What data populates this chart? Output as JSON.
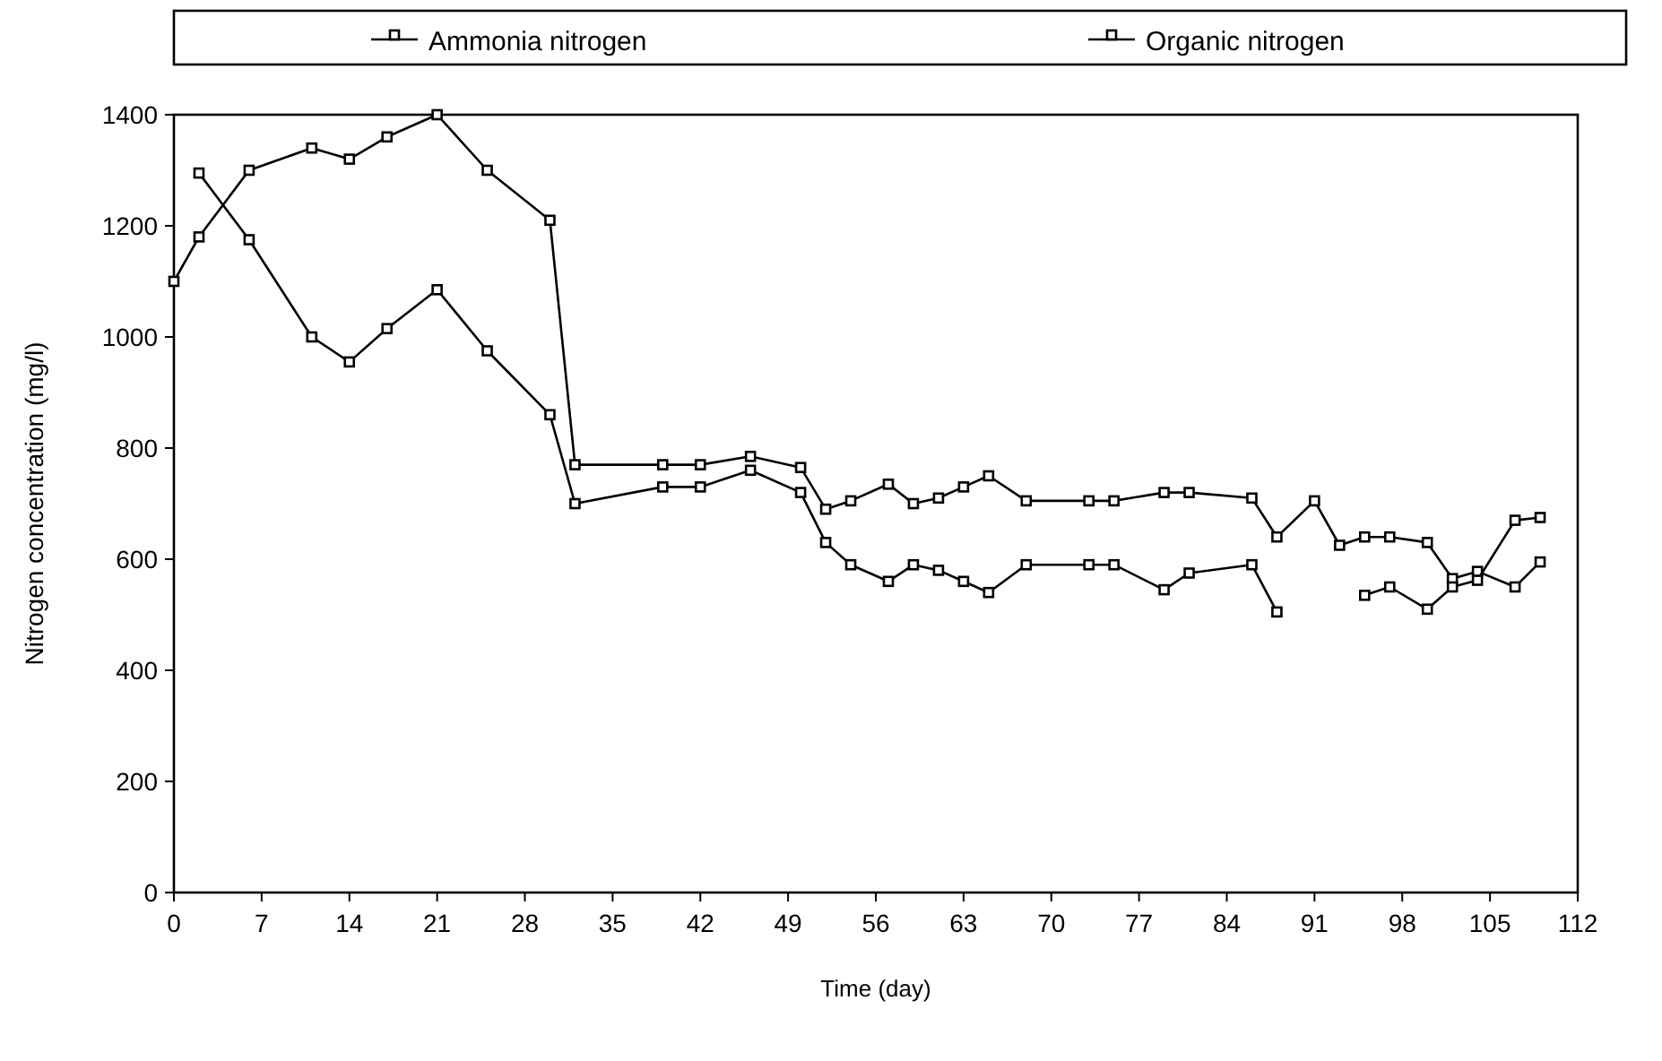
{
  "chart_data": {
    "type": "line",
    "xlabel": "Time (day)",
    "ylabel": "Nitrogen concentration (mg/l)",
    "xlim": [
      0,
      112
    ],
    "xticks": [
      0,
      7,
      14,
      21,
      28,
      35,
      42,
      49,
      56,
      63,
      70,
      77,
      84,
      91,
      98,
      105,
      112
    ],
    "ylim": [
      0,
      1400
    ],
    "yticks": [
      0,
      200,
      400,
      600,
      800,
      1000,
      1200,
      1400
    ],
    "legend": "top",
    "marker": "square",
    "line_style": "solid",
    "grid": false,
    "series": [
      {
        "name": "Ammonia nitrogen",
        "color": "#000000",
        "x": [
          0,
          2,
          6,
          11,
          14,
          17,
          21,
          25,
          30,
          32,
          39,
          42,
          46,
          50,
          52,
          54,
          57,
          59,
          61,
          63,
          65,
          68,
          73,
          75,
          79,
          81,
          86,
          88,
          91,
          93,
          95,
          97,
          100,
          102,
          104,
          107,
          109
        ],
        "values": [
          1100,
          1180,
          1300,
          1340,
          1320,
          1360,
          1400,
          1300,
          1210,
          770,
          770,
          770,
          785,
          765,
          690,
          705,
          735,
          700,
          710,
          730,
          750,
          705,
          705,
          705,
          720,
          720,
          710,
          640,
          705,
          625,
          640,
          640,
          630,
          565,
          578,
          550,
          595
        ]
      },
      {
        "name": "Organic nitrogen",
        "color": "#000000",
        "x": [
          2,
          6,
          11,
          14,
          17,
          21,
          25,
          30,
          32,
          39,
          42,
          46,
          50,
          52,
          54,
          57,
          59,
          61,
          63,
          65,
          68,
          73,
          75,
          79,
          81,
          86,
          88,
          91,
          95,
          97,
          100,
          102,
          104,
          107,
          109
        ],
        "values": [
          1295,
          1175,
          1000,
          955,
          1015,
          1085,
          975,
          860,
          700,
          730,
          730,
          760,
          720,
          630,
          590,
          560,
          590,
          580,
          560,
          540,
          590,
          590,
          590,
          545,
          575,
          590,
          505,
          null,
          535,
          550,
          510,
          550,
          562,
          670,
          675
        ]
      }
    ]
  }
}
